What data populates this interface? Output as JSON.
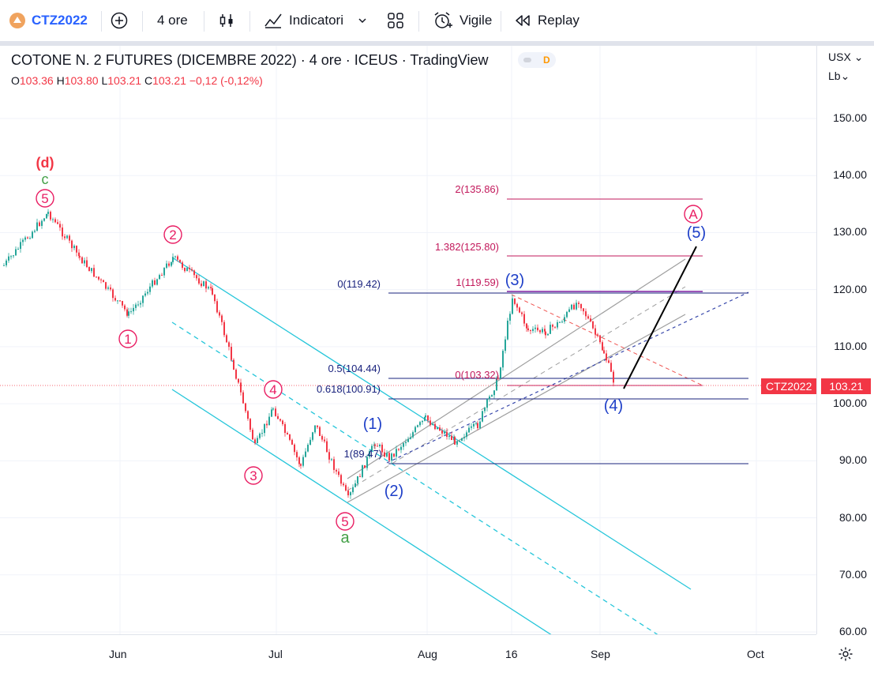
{
  "toolbar": {
    "symbol": "CTZ2022",
    "interval": "4 ore",
    "indicators": "Indicatori",
    "alert": "Vigile",
    "replay": "Replay"
  },
  "legend": {
    "title": "COTONE N. 2 FUTURES (DICEMBRE 2022) · 4 ore · ICEUS · TradingView",
    "o_label": "O",
    "o": "103.36",
    "h_label": "H",
    "h": "103.80",
    "l_label": "L",
    "l": "103.21",
    "c_label": "C",
    "c": "103.21",
    "change": "−0,12 (-0,12%)",
    "badge": "D"
  },
  "axis": {
    "currency": "USX",
    "unit": "Lb",
    "y_ticks": [
      "150.00",
      "140.00",
      "130.00",
      "120.00",
      "110.00",
      "100.00",
      "90.00",
      "80.00",
      "70.00",
      "60.00"
    ],
    "x_ticks": [
      "Jun",
      "Jul",
      "Aug",
      "16",
      "Sep",
      "Oct"
    ]
  },
  "price_label": {
    "symbol": "CTZ2022",
    "price": "103.21"
  },
  "annotations": {
    "d": "(d)",
    "c": "c",
    "five_top": "5",
    "two": "2",
    "one": "1",
    "three": "3",
    "four": "4",
    "five_bottom": "5",
    "a": "a",
    "w1": "(1)",
    "w2": "(2)",
    "w3": "(3)",
    "w4": "(4)",
    "w5": "(5)",
    "A": "A"
  },
  "fib": {
    "f2": "2(135.86)",
    "f1382": "1.382(125.80)",
    "f0": "0(119.42)",
    "f1": "1(119.59)",
    "f05": "0.5(104.44)",
    "f0_103": "0(103.32)",
    "f0618": "0.618(100.91)",
    "f1_89": "1(89.47)"
  },
  "colors": {
    "up": "#26a69a",
    "down": "#f23645",
    "channel": "#26c6da",
    "fibBlue": "#1a237e",
    "fibRed": "#c2185b",
    "wave": "#1e3fc8",
    "pink": "#e91e63",
    "green": "#43a047"
  }
}
